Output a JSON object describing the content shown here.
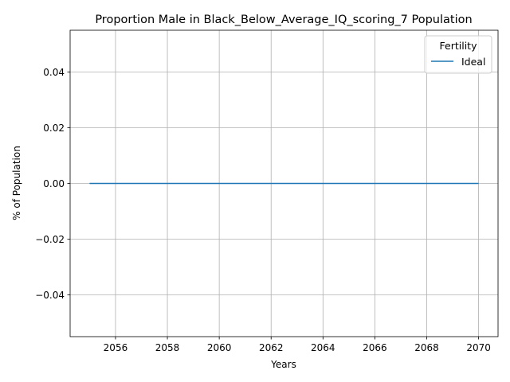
{
  "chart_data": {
    "type": "line",
    "title": "Proportion Male in Black_Below_Average_IQ_scoring_7 Population",
    "xlabel": "Years",
    "ylabel": "% of Population",
    "xlim": [
      2054.25,
      2070.75
    ],
    "ylim": [
      -0.055,
      0.055
    ],
    "x_ticks": [
      2056,
      2058,
      2060,
      2062,
      2064,
      2066,
      2068,
      2070
    ],
    "x_tick_labels": [
      "2056",
      "2058",
      "2060",
      "2062",
      "2064",
      "2066",
      "2068",
      "2070"
    ],
    "y_ticks": [
      -0.04,
      -0.02,
      0.0,
      0.02,
      0.04
    ],
    "y_tick_labels": [
      "−0.04",
      "−0.02",
      "0.00",
      "0.02",
      "0.04"
    ],
    "grid": true,
    "legend": {
      "title": "Fertility",
      "placement": "top-right"
    },
    "series": [
      {
        "name": "Ideal",
        "color": "#1f77b4",
        "x": [
          2055,
          2056,
          2057,
          2058,
          2059,
          2060,
          2061,
          2062,
          2063,
          2064,
          2065,
          2066,
          2067,
          2068,
          2069,
          2070
        ],
        "y": [
          0,
          0,
          0,
          0,
          0,
          0,
          0,
          0,
          0,
          0,
          0,
          0,
          0,
          0,
          0,
          0
        ]
      }
    ]
  }
}
